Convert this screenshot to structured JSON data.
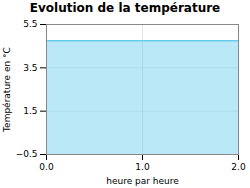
{
  "chart_data": {
    "type": "area",
    "title": "Evolution de la température",
    "xlabel": "heure par heure",
    "ylabel": "Température en °C",
    "x": [
      0,
      2
    ],
    "values": [
      4.75,
      4.75
    ],
    "color": "#66ccee",
    "xlim": [
      0,
      2
    ],
    "ylim": [
      -0.5,
      5.5
    ],
    "xticks": [
      0,
      1,
      2
    ],
    "yticks": [
      -0.5,
      1.5,
      3.5,
      5.5
    ],
    "grid": true
  }
}
